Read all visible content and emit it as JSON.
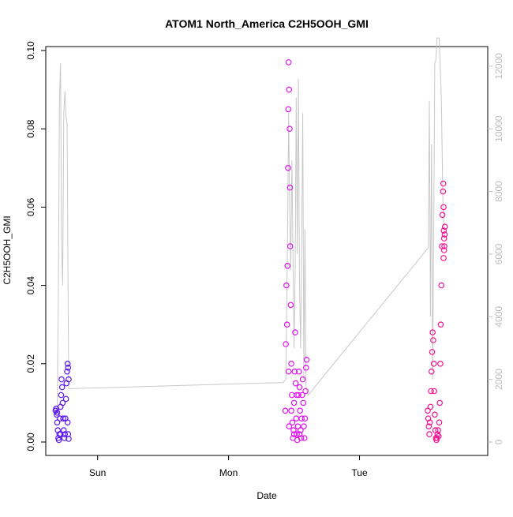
{
  "chart_data": {
    "type": "scatter",
    "title": "ATOM1 North_America C2H5OOH_GMI",
    "xlabel": "Date",
    "ylabel": "C2H5OOH_GMI",
    "x_ticks": [
      "Sun",
      "Mon",
      "Tue"
    ],
    "x_tick_hours": [
      24,
      48,
      72
    ],
    "xlim_hours": [
      14.5,
      95.5
    ],
    "ylim": [
      0,
      0.1
    ],
    "y_ticks": [
      0.0,
      0.02,
      0.04,
      0.06,
      0.08,
      0.1
    ],
    "y_tick_labels": [
      "0.00",
      "0.02",
      "0.04",
      "0.06",
      "0.08",
      "0.10"
    ],
    "y2lim": [
      0,
      12500
    ],
    "y2_ticks": [
      0,
      2000,
      4000,
      6000,
      8000,
      10000,
      12000
    ],
    "y2_tick_labels": [
      "0",
      "2000",
      "4000",
      "6000",
      "8000",
      "10000",
      "12000"
    ],
    "grid": false,
    "legend": "none",
    "colors": {
      "flight1": "#5a16f0",
      "flight2": "#e014ef",
      "flight3": "#f41493",
      "altitude": "#c8c8c8"
    },
    "series": [
      {
        "marker": "open-circle",
        "color": "#5a16f0",
        "points": [
          [
            16.3,
            0.008
          ],
          [
            16.4,
            0.0085
          ],
          [
            16.5,
            0.007
          ],
          [
            16.6,
            0.005
          ],
          [
            16.7,
            0.003
          ],
          [
            16.8,
            0.001
          ],
          [
            16.9,
            0.0005
          ],
          [
            17.0,
            0.002
          ],
          [
            17.1,
            0.006
          ],
          [
            17.2,
            0.009
          ],
          [
            17.3,
            0.012
          ],
          [
            17.4,
            0.016
          ],
          [
            17.5,
            0.014
          ],
          [
            17.6,
            0.01
          ],
          [
            17.7,
            0.006
          ],
          [
            17.8,
            0.003
          ],
          [
            17.9,
            0.001
          ],
          [
            18.0,
            0.002
          ],
          [
            18.1,
            0.006
          ],
          [
            18.2,
            0.011
          ],
          [
            18.3,
            0.015
          ],
          [
            18.4,
            0.018
          ],
          [
            18.5,
            0.02
          ],
          [
            18.6,
            0.019
          ],
          [
            18.7,
            0.016
          ],
          [
            18.5,
            0.005
          ],
          [
            18.6,
            0.002
          ],
          [
            18.7,
            0.0008
          ],
          [
            17.2,
            0.002
          ],
          [
            16.6,
            0.0075
          ]
        ]
      },
      {
        "marker": "open-circle",
        "color": "#e014ef",
        "points": [
          [
            58.4,
            0.008
          ],
          [
            58.5,
            0.025
          ],
          [
            58.6,
            0.04
          ],
          [
            58.7,
            0.03
          ],
          [
            58.8,
            0.045
          ],
          [
            58.9,
            0.07
          ],
          [
            58.95,
            0.085
          ],
          [
            59.0,
            0.097
          ],
          [
            59.1,
            0.09
          ],
          [
            59.2,
            0.08
          ],
          [
            59.25,
            0.065
          ],
          [
            59.3,
            0.05
          ],
          [
            59.4,
            0.035
          ],
          [
            59.5,
            0.02
          ],
          [
            59.6,
            0.012
          ],
          [
            59.7,
            0.005
          ],
          [
            59.8,
            0.001
          ],
          [
            59.9,
            0.003
          ],
          [
            60.0,
            0.01
          ],
          [
            60.1,
            0.018
          ],
          [
            60.2,
            0.028
          ],
          [
            60.3,
            0.015
          ],
          [
            60.4,
            0.006
          ],
          [
            60.5,
            0.002
          ],
          [
            60.6,
            0.0005
          ],
          [
            60.7,
            0.004
          ],
          [
            60.8,
            0.012
          ],
          [
            60.9,
            0.018
          ],
          [
            61.0,
            0.014
          ],
          [
            61.1,
            0.008
          ],
          [
            61.2,
            0.003
          ],
          [
            61.3,
            0.001
          ],
          [
            61.4,
            0.006
          ],
          [
            61.5,
            0.012
          ],
          [
            61.6,
            0.016
          ],
          [
            61.7,
            0.01
          ],
          [
            61.8,
            0.004
          ],
          [
            61.9,
            0.001
          ],
          [
            62.0,
            0.006
          ],
          [
            62.1,
            0.013
          ],
          [
            62.2,
            0.019
          ],
          [
            62.3,
            0.021
          ],
          [
            59.1,
            0.004
          ],
          [
            59.5,
            0.008
          ],
          [
            60.0,
            0.002
          ],
          [
            60.5,
            0.012
          ],
          [
            61.0,
            0.002
          ],
          [
            59.0,
            0.018
          ]
        ]
      },
      {
        "marker": "open-circle",
        "color": "#f41493",
        "points": [
          [
            84.5,
            0.008
          ],
          [
            84.6,
            0.006
          ],
          [
            84.7,
            0.004
          ],
          [
            84.8,
            0.002
          ],
          [
            84.9,
            0.005
          ],
          [
            85.0,
            0.009
          ],
          [
            85.1,
            0.013
          ],
          [
            85.2,
            0.018
          ],
          [
            85.3,
            0.023
          ],
          [
            85.4,
            0.028
          ],
          [
            85.5,
            0.026
          ],
          [
            85.6,
            0.02
          ],
          [
            85.7,
            0.013
          ],
          [
            85.8,
            0.007
          ],
          [
            85.9,
            0.003
          ],
          [
            86.0,
            0.001
          ],
          [
            86.1,
            0.0005
          ],
          [
            86.2,
            0.001
          ],
          [
            86.3,
            0.002
          ],
          [
            86.4,
            0.003
          ],
          [
            86.5,
            0.0015
          ],
          [
            86.6,
            0.005
          ],
          [
            86.7,
            0.01
          ],
          [
            86.8,
            0.02
          ],
          [
            86.9,
            0.03
          ],
          [
            87.0,
            0.04
          ],
          [
            87.1,
            0.05
          ],
          [
            87.2,
            0.058
          ],
          [
            87.3,
            0.064
          ],
          [
            87.35,
            0.066
          ],
          [
            87.4,
            0.06
          ],
          [
            87.45,
            0.054
          ],
          [
            87.5,
            0.052
          ],
          [
            87.55,
            0.05
          ],
          [
            87.6,
            0.053
          ],
          [
            87.65,
            0.055
          ],
          [
            87.4,
            0.047
          ],
          [
            87.5,
            0.049
          ]
        ]
      }
    ],
    "altitude_line": {
      "color": "#c8c8c8",
      "axis": "right",
      "points": [
        [
          16.3,
          1000
        ],
        [
          16.6,
          1100
        ],
        [
          16.8,
          4500
        ],
        [
          17.0,
          10800
        ],
        [
          17.2,
          12100
        ],
        [
          17.4,
          6500
        ],
        [
          17.6,
          5000
        ],
        [
          17.8,
          10500
        ],
        [
          18.0,
          11200
        ],
        [
          18.2,
          10400
        ],
        [
          18.4,
          10200
        ],
        [
          18.7,
          1700
        ],
        [
          58.0,
          1900
        ],
        [
          58.5,
          2000
        ],
        [
          58.8,
          6500
        ],
        [
          59.0,
          10500
        ],
        [
          59.2,
          7500
        ],
        [
          59.4,
          5500
        ],
        [
          59.6,
          9000
        ],
        [
          59.8,
          6000
        ],
        [
          60.0,
          3000
        ],
        [
          60.2,
          5500
        ],
        [
          60.4,
          11000
        ],
        [
          60.6,
          6000
        ],
        [
          60.8,
          11600
        ],
        [
          61.0,
          5000
        ],
        [
          61.2,
          3000
        ],
        [
          61.4,
          6000
        ],
        [
          61.6,
          10500
        ],
        [
          61.8,
          2000
        ],
        [
          62.0,
          6800
        ],
        [
          62.2,
          1700
        ],
        [
          62.6,
          1500
        ],
        [
          84.6,
          6200
        ],
        [
          84.8,
          10900
        ],
        [
          85.0,
          4000
        ],
        [
          85.2,
          9500
        ],
        [
          85.4,
          2000
        ],
        [
          85.6,
          7000
        ],
        [
          85.8,
          12100
        ],
        [
          86.0,
          12200
        ],
        [
          86.2,
          12900
        ],
        [
          86.6,
          12900
        ],
        [
          87.0,
          11000
        ],
        [
          87.3,
          7500
        ],
        [
          87.6,
          6500
        ]
      ]
    }
  }
}
